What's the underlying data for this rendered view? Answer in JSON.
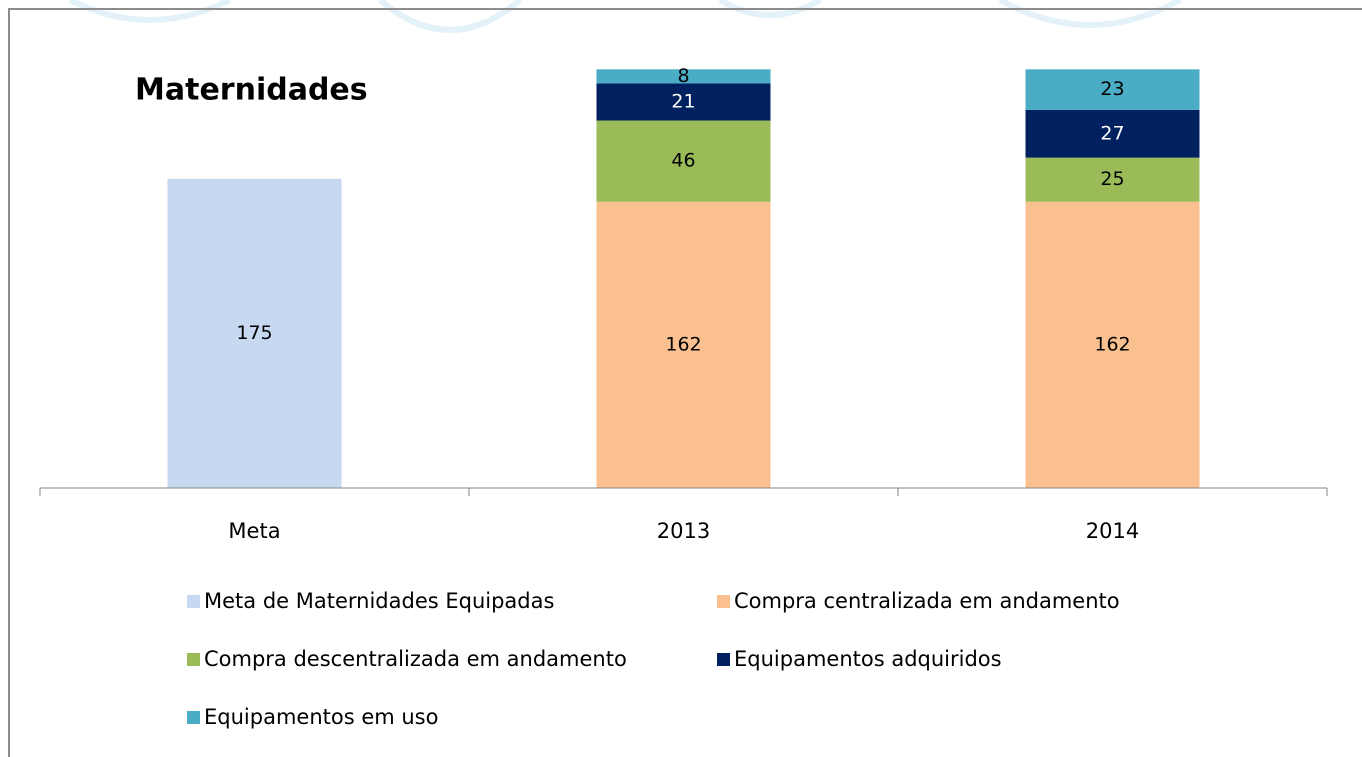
{
  "chart_data": {
    "type": "stacked_bar",
    "title": "Maternidades",
    "categories": [
      "Meta",
      "2013",
      "2014"
    ],
    "series": [
      {
        "name": "Meta de Maternidades Equipadas",
        "color": "#c6d9f1",
        "values": [
          175,
          null,
          null
        ]
      },
      {
        "name": "Compra centralizada em andamento",
        "color": "#fac090",
        "values": [
          null,
          162,
          162
        ]
      },
      {
        "name": "Compra descentralizada em andamento",
        "color": "#9bbb59",
        "values": [
          null,
          46,
          25
        ]
      },
      {
        "name": "Equipamentos adquiridos",
        "color": "#002060",
        "values": [
          null,
          21,
          27
        ]
      },
      {
        "name": "Equipamentos em uso",
        "color": "#4bacc6",
        "values": [
          null,
          8,
          23
        ]
      }
    ],
    "ylim": [
      0,
      240
    ],
    "legend": "bottom"
  }
}
